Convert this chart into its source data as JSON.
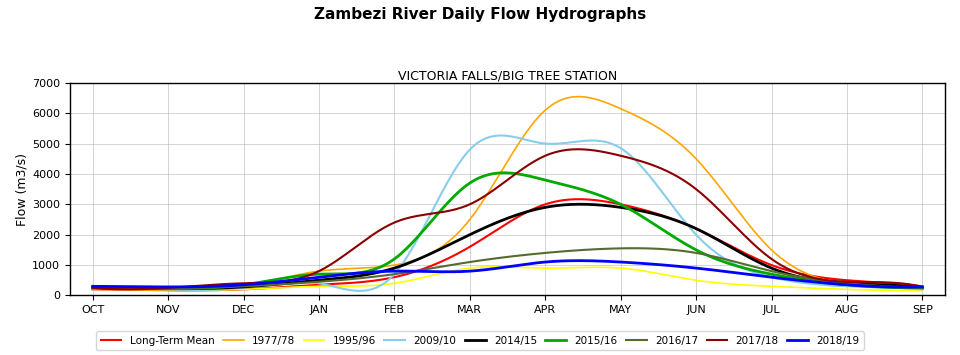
{
  "title": "Zambezi River Daily Flow Hydrographs",
  "subtitle": "VICTORIA FALLS/BIG TREE STATION",
  "ylabel": "Flow (m3/s)",
  "months": [
    "OCT",
    "NOV",
    "DEC",
    "JAN",
    "FEB",
    "MAR",
    "APR",
    "MAY",
    "JUN",
    "JUL",
    "AUG",
    "SEP"
  ],
  "ylim": [
    0,
    7000
  ],
  "yticks": [
    0,
    1000,
    2000,
    3000,
    4000,
    5000,
    6000,
    7000
  ],
  "series": {
    "Long-Term Mean": {
      "color": "#ff0000",
      "linewidth": 1.5,
      "values": [
        200,
        170,
        200,
        350,
        600,
        1600,
        3000,
        3000,
        2200,
        1000,
        500,
        300
      ]
    },
    "1977/78": {
      "color": "#ffa500",
      "linewidth": 1.2,
      "values": [
        200,
        200,
        300,
        800,
        1000,
        2500,
        6100,
        6150,
        4500,
        1500,
        400,
        250
      ]
    },
    "1995/96": {
      "color": "#ffff00",
      "linewidth": 1.2,
      "values": [
        200,
        180,
        200,
        300,
        400,
        900,
        900,
        900,
        500,
        300,
        200,
        150
      ]
    },
    "2009/10": {
      "color": "#87ceeb",
      "linewidth": 1.5,
      "values": [
        200,
        200,
        250,
        400,
        700,
        4800,
        5000,
        4850,
        2000,
        600,
        300,
        200
      ]
    },
    "2014/15": {
      "color": "#000000",
      "linewidth": 2.0,
      "values": [
        250,
        220,
        280,
        500,
        900,
        2000,
        2900,
        2900,
        2200,
        900,
        400,
        250
      ]
    },
    "2015/16": {
      "color": "#00aa00",
      "linewidth": 2.0,
      "values": [
        250,
        230,
        350,
        700,
        1200,
        3700,
        3800,
        3000,
        1500,
        700,
        350,
        250
      ]
    },
    "2016/17": {
      "color": "#556b2f",
      "linewidth": 1.5,
      "values": [
        250,
        230,
        300,
        450,
        700,
        1100,
        1400,
        1550,
        1400,
        800,
        400,
        250
      ]
    },
    "2017/18": {
      "color": "#8b0000",
      "linewidth": 1.5,
      "values": [
        250,
        250,
        400,
        800,
        2400,
        3000,
        4600,
        4600,
        3500,
        1200,
        450,
        280
      ]
    },
    "2018/19": {
      "color": "#0000ff",
      "linewidth": 2.0,
      "values": [
        300,
        280,
        350,
        600,
        800,
        800,
        1100,
        1100,
        900,
        600,
        350,
        280
      ]
    }
  },
  "background_color": "#ffffff",
  "grid_color": "#aaaaaa",
  "title_fontsize": 11,
  "subtitle_fontsize": 9,
  "axis_label_fontsize": 9,
  "tick_fontsize": 8,
  "legend_fontsize": 7.5
}
